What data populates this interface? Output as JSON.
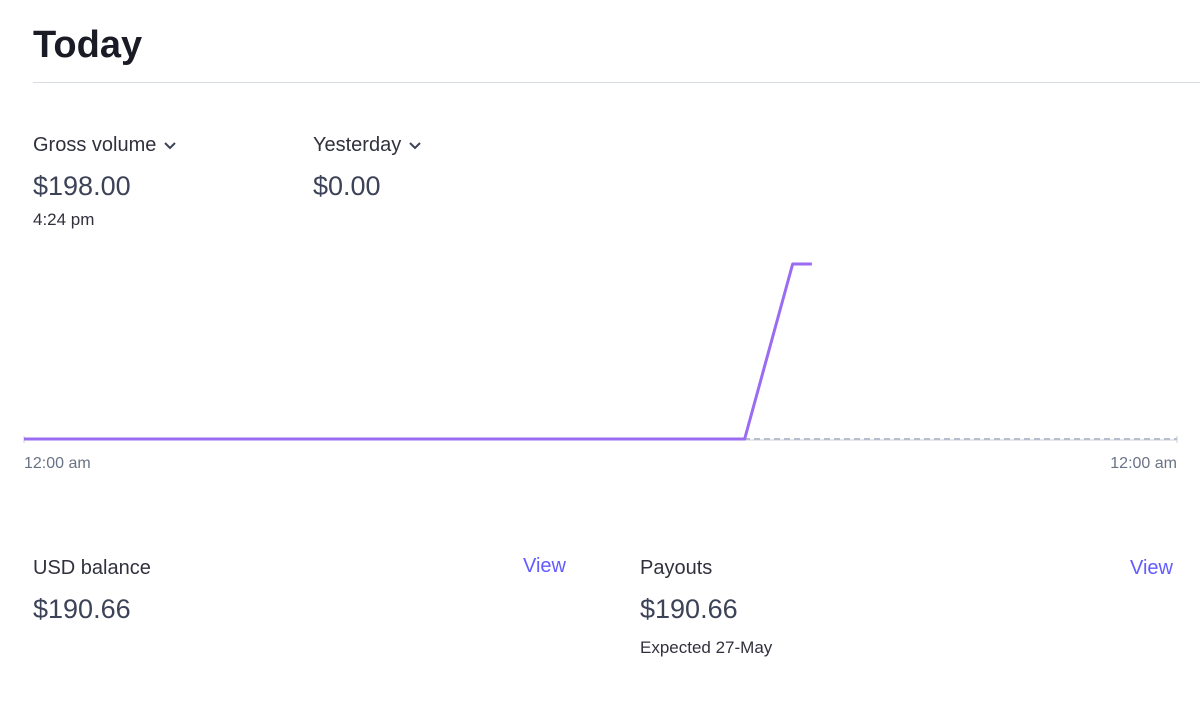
{
  "header": {
    "title": "Today"
  },
  "summary": {
    "primary_value": "$198.00",
    "primary_time": "4:24 pm",
    "secondary_value": "$0.00"
  },
  "chart_data": {
    "type": "line",
    "series": [
      {
        "name": "Gross volume",
        "color": "#9b6cf2",
        "x": [
          0,
          15,
          16,
          16.4
        ],
        "values": [
          0,
          0,
          198,
          198
        ]
      },
      {
        "name": "Yesterday",
        "color": "#b6bfcb",
        "dashed": true,
        "x": [
          0,
          24
        ],
        "values": [
          0,
          0
        ]
      }
    ],
    "xlim": [
      0,
      24
    ],
    "xticks": [
      {
        "value": 0,
        "label": "12:00 am"
      },
      {
        "value": 24,
        "label": "12:00 am"
      }
    ],
    "ylim": [
      0,
      198
    ]
  },
  "cards": [
    {
      "title": "USD balance",
      "link": "View",
      "value": "$190.66"
    },
    {
      "title": "Payouts",
      "link": "View",
      "value": "$190.66",
      "note": "Expected 27-May"
    }
  ]
}
